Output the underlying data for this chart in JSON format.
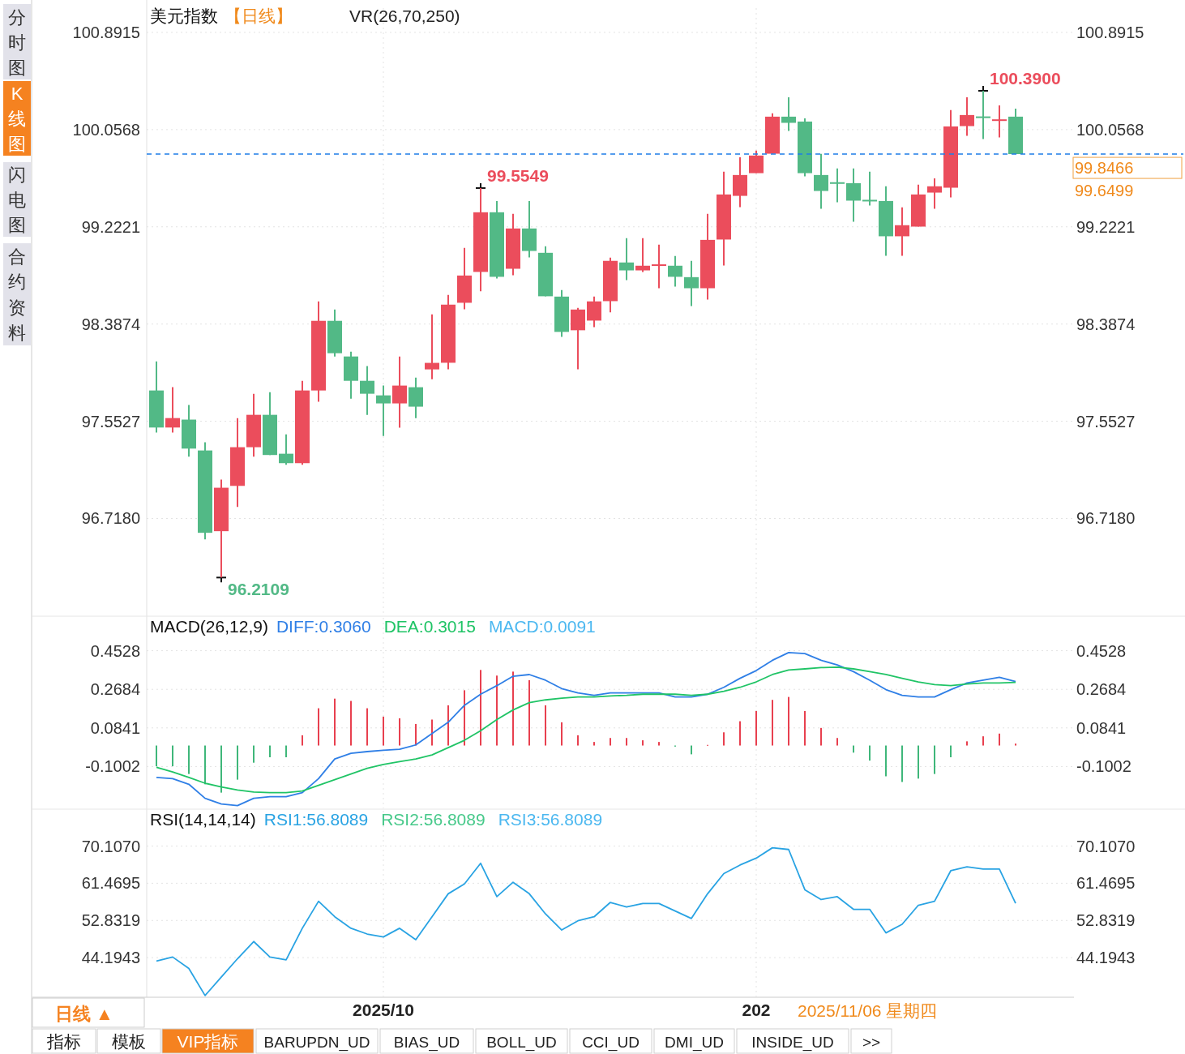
{
  "chart_data": [
    {
      "type": "candlestick",
      "title": "美元指数",
      "subtitle": "【日线】",
      "categories": [
        null,
        null,
        null,
        null,
        null,
        null,
        null,
        null,
        null,
        null,
        null,
        null,
        null,
        null,
        "2025/10",
        null,
        null,
        null,
        null,
        null,
        null,
        null,
        null,
        null,
        null,
        null,
        null,
        null,
        null,
        null,
        null,
        null,
        null,
        null,
        null,
        null,
        null,
        "202",
        null,
        null,
        null,
        null,
        null,
        null,
        null,
        null,
        null,
        null,
        null,
        null,
        null,
        null,
        null,
        null
      ],
      "ohlc": [
        [
          97.817,
          98.067,
          97.455,
          97.499
        ],
        [
          97.499,
          97.845,
          97.455,
          97.58
        ],
        [
          97.567,
          97.692,
          97.249,
          97.318
        ],
        [
          97.302,
          97.372,
          96.539,
          96.595
        ],
        [
          96.609,
          97.052,
          96.2109,
          96.982
        ],
        [
          96.998,
          97.58,
          96.818,
          97.33
        ],
        [
          97.33,
          97.789,
          97.249,
          97.608
        ],
        [
          97.608,
          97.803,
          97.263,
          97.263
        ],
        [
          97.274,
          97.441,
          97.179,
          97.193
        ],
        [
          97.193,
          97.9,
          97.179,
          97.817
        ],
        [
          97.817,
          98.582,
          97.72,
          98.415
        ],
        [
          98.415,
          98.513,
          98.109,
          98.137
        ],
        [
          98.109,
          98.151,
          97.747,
          97.9
        ],
        [
          97.9,
          98.026,
          97.608,
          97.789
        ],
        [
          97.775,
          97.859,
          97.427,
          97.706
        ],
        [
          97.706,
          98.109,
          97.497,
          97.859
        ],
        [
          97.845,
          97.928,
          97.58,
          97.678
        ],
        [
          97.998,
          98.471,
          97.914,
          98.054
        ],
        [
          98.055,
          98.637,
          97.999,
          98.554
        ],
        [
          98.57,
          99.041,
          98.514,
          98.804
        ],
        [
          98.835,
          99.5549,
          98.668,
          99.347
        ],
        [
          99.347,
          99.444,
          98.779,
          98.793
        ],
        [
          98.862,
          99.333,
          98.807,
          99.208
        ],
        [
          99.208,
          99.444,
          98.96,
          99.015
        ],
        [
          98.999,
          99.055,
          98.626,
          98.626
        ],
        [
          98.623,
          98.679,
          98.278,
          98.32
        ],
        [
          98.334,
          98.526,
          97.999,
          98.512
        ],
        [
          98.417,
          98.623,
          98.361,
          98.582
        ],
        [
          98.584,
          98.957,
          98.487,
          98.93
        ],
        [
          98.916,
          99.124,
          98.765,
          98.848
        ],
        [
          98.848,
          99.124,
          98.834,
          98.888
        ],
        [
          98.897,
          99.069,
          98.695,
          98.9
        ],
        [
          98.888,
          98.971,
          98.709,
          98.793
        ],
        [
          98.79,
          98.93,
          98.542,
          98.695
        ],
        [
          98.695,
          99.333,
          98.598,
          99.11
        ],
        [
          99.113,
          99.695,
          98.89,
          99.5
        ],
        [
          99.488,
          99.82,
          99.391,
          99.667
        ],
        [
          99.683,
          99.876,
          99.683,
          99.834
        ],
        [
          99.85,
          100.196,
          99.85,
          100.168
        ],
        [
          100.168,
          100.335,
          100.045,
          100.115
        ],
        [
          100.126,
          100.154,
          99.655,
          99.683
        ],
        [
          99.667,
          99.848,
          99.377,
          99.53
        ],
        [
          99.605,
          99.723,
          99.433,
          99.6
        ],
        [
          99.597,
          99.723,
          99.266,
          99.447
        ],
        [
          99.454,
          99.695,
          99.405,
          99.45
        ],
        [
          99.444,
          99.57,
          98.974,
          99.141
        ],
        [
          99.141,
          99.389,
          98.974,
          99.236
        ],
        [
          99.224,
          99.584,
          99.224,
          99.5
        ],
        [
          99.516,
          99.639,
          99.377,
          99.57
        ],
        [
          99.558,
          100.224,
          99.475,
          100.084
        ],
        [
          100.087,
          100.335,
          100.003,
          100.182
        ],
        [
          100.17,
          100.39,
          99.975,
          100.165
        ],
        [
          100.14,
          100.265,
          99.989,
          100.145
        ],
        [
          100.168,
          100.237,
          99.8466,
          99.8466
        ]
      ],
      "colors": [
        "#52b986",
        "#eb4d5c",
        "#52b986",
        "#52b986",
        "#eb4d5c",
        "#eb4d5c",
        "#eb4d5c",
        "#52b986",
        "#52b986",
        "#eb4d5c",
        "#eb4d5c",
        "#52b986",
        "#52b986",
        "#52b986",
        "#52b986",
        "#eb4d5c",
        "#52b986",
        "#eb4d5c",
        "#eb4d5c",
        "#eb4d5c",
        "#eb4d5c",
        "#52b986",
        "#eb4d5c",
        "#52b986",
        "#52b986",
        "#52b986",
        "#eb4d5c",
        "#eb4d5c",
        "#eb4d5c",
        "#52b986",
        "#eb4d5c",
        "#eb4d5c",
        "#52b986",
        "#52b986",
        "#eb4d5c",
        "#eb4d5c",
        "#eb4d5c",
        "#eb4d5c",
        "#eb4d5c",
        "#52b986",
        "#52b986",
        "#52b986",
        "#52b986",
        "#52b986",
        "#52b986",
        "#52b986",
        "#eb4d5c",
        "#eb4d5c",
        "#eb4d5c",
        "#eb4d5c",
        "#eb4d5c",
        "#52b986",
        "#eb4d5c",
        "#52b986"
      ],
      "ylim": [
        95.9,
        101.1
      ],
      "yticks": [
        {
          "value": 100.8915,
          "label": "100.8915"
        },
        {
          "value": 100.0568,
          "label": "100.0568"
        },
        {
          "value": 99.2221,
          "label": "99.2221"
        },
        {
          "value": 98.3874,
          "label": "98.3874"
        },
        {
          "value": 97.5527,
          "label": "97.5527"
        },
        {
          "value": 96.718,
          "label": "96.7180"
        }
      ],
      "y2lim": [
        95.9,
        101.1
      ],
      "y2ticks": [
        {
          "value": 100.8915,
          "label": "100.8915"
        },
        {
          "value": 100.0568,
          "label": "100.0568"
        },
        {
          "value": 99.2221,
          "label": "99.2221"
        },
        {
          "value": 98.3874,
          "label": "98.3874"
        },
        {
          "value": 97.5527,
          "label": "97.5527"
        },
        {
          "value": 96.718,
          "label": "96.7180"
        }
      ],
      "ref_lines": [
        {
          "axis": "y",
          "value": 99.8466,
          "label": "99.8466",
          "color": "#1e7ee8",
          "line_style": "dashed"
        }
      ],
      "annotations": [
        "VR(26,70,250)",
        "99.6499",
        "99.5549",
        "96.2109",
        "100.3900"
      ],
      "grid": true,
      "tick_labels": "y"
    },
    {
      "type": "line",
      "title": "MACD(26,12,9)",
      "categories": [
        null,
        null,
        null,
        null,
        null,
        null,
        null,
        null,
        null,
        null,
        null,
        null,
        null,
        null,
        "2025/10",
        null,
        null,
        null,
        null,
        null,
        null,
        null,
        null,
        null,
        null,
        null,
        null,
        null,
        null,
        null,
        null,
        null,
        null,
        null,
        null,
        null,
        null,
        "202",
        null,
        null,
        null,
        null,
        null,
        null,
        null,
        null,
        null,
        null,
        null,
        null,
        null,
        null,
        null,
        null
      ],
      "series": [
        {
          "name": "DIFF:0.3060",
          "color": "#2f7fe6",
          "values": [
            -0.152,
            -0.158,
            -0.185,
            -0.252,
            -0.279,
            -0.287,
            -0.252,
            -0.244,
            -0.244,
            -0.225,
            -0.158,
            -0.064,
            -0.037,
            -0.029,
            -0.023,
            -0.018,
            0.003,
            0.057,
            0.111,
            0.192,
            0.245,
            0.286,
            0.331,
            0.339,
            0.312,
            0.272,
            0.251,
            0.24,
            0.251,
            0.251,
            0.251,
            0.251,
            0.232,
            0.232,
            0.245,
            0.278,
            0.321,
            0.358,
            0.407,
            0.444,
            0.439,
            0.407,
            0.385,
            0.353,
            0.312,
            0.267,
            0.24,
            0.232,
            0.232,
            0.267,
            0.299,
            0.312,
            0.326,
            0.306
          ]
        },
        {
          "name": "DEA:0.3015",
          "color": "#20c466",
          "values": [
            -0.104,
            -0.126,
            -0.152,
            -0.18,
            -0.198,
            -0.212,
            -0.222,
            -0.225,
            -0.225,
            -0.217,
            -0.19,
            -0.163,
            -0.136,
            -0.109,
            -0.09,
            -0.077,
            -0.064,
            -0.045,
            -0.01,
            0.025,
            0.071,
            0.124,
            0.17,
            0.205,
            0.218,
            0.226,
            0.232,
            0.232,
            0.237,
            0.24,
            0.245,
            0.245,
            0.245,
            0.24,
            0.245,
            0.259,
            0.278,
            0.304,
            0.339,
            0.361,
            0.366,
            0.372,
            0.374,
            0.366,
            0.353,
            0.339,
            0.321,
            0.304,
            0.291,
            0.286,
            0.294,
            0.299,
            0.299,
            0.3015
          ]
        },
        {
          "name": "MACD:0.0091",
          "type": "bar",
          "color": "#4cb8f0",
          "values": [
            -0.099,
            -0.099,
            -0.136,
            -0.185,
            -0.225,
            -0.163,
            -0.082,
            -0.056,
            -0.056,
            0.049,
            0.178,
            0.224,
            0.213,
            0.178,
            0.138,
            0.13,
            0.103,
            0.124,
            0.192,
            0.264,
            0.361,
            0.334,
            0.353,
            0.312,
            0.192,
            0.111,
            0.049,
            0.017,
            0.036,
            0.036,
            0.025,
            0.017,
            -0.005,
            -0.042,
            0.003,
            0.063,
            0.116,
            0.165,
            0.218,
            0.232,
            0.165,
            0.084,
            0.036,
            -0.034,
            -0.072,
            -0.147,
            -0.174,
            -0.158,
            -0.136,
            -0.056,
            0.02,
            0.044,
            0.057,
            0.0091
          ],
          "colors": [
            "#3fb77a",
            "#3fb77a",
            "#3fb77a",
            "#3fb77a",
            "#3fb77a",
            "#3fb77a",
            "#3fb77a",
            "#3fb77a",
            "#3fb77a",
            "#e8404f",
            "#e8404f",
            "#e8404f",
            "#e8404f",
            "#e8404f",
            "#e8404f",
            "#e8404f",
            "#e8404f",
            "#e8404f",
            "#e8404f",
            "#e8404f",
            "#e8404f",
            "#e8404f",
            "#e8404f",
            "#e8404f",
            "#e8404f",
            "#e8404f",
            "#e8404f",
            "#e8404f",
            "#e8404f",
            "#e8404f",
            "#e8404f",
            "#e8404f",
            "#3fb77a",
            "#3fb77a",
            "#e8404f",
            "#e8404f",
            "#e8404f",
            "#e8404f",
            "#e8404f",
            "#e8404f",
            "#e8404f",
            "#e8404f",
            "#e8404f",
            "#3fb77a",
            "#3fb77a",
            "#3fb77a",
            "#3fb77a",
            "#3fb77a",
            "#3fb77a",
            "#3fb77a",
            "#e8404f",
            "#e8404f",
            "#e8404f",
            "#e8404f"
          ]
        }
      ],
      "ylim": [
        -0.3,
        0.61
      ],
      "yticks": [
        0.4528,
        0.2684,
        0.0841,
        -0.1002
      ],
      "y2lim": [
        -0.3,
        0.61
      ],
      "y2ticks": [
        0.4528,
        0.2684,
        0.0841,
        -0.1002
      ],
      "grid": true,
      "legend": "top left",
      "tick_labels": "y"
    },
    {
      "type": "line",
      "title": "RSI(14,14,14)",
      "categories": [
        null,
        null,
        null,
        null,
        null,
        null,
        null,
        null,
        null,
        null,
        null,
        null,
        null,
        null,
        "2025/10",
        null,
        null,
        null,
        null,
        null,
        null,
        null,
        null,
        null,
        null,
        null,
        null,
        null,
        null,
        null,
        null,
        null,
        null,
        null,
        null,
        null,
        null,
        "202",
        null,
        null,
        null,
        null,
        null,
        null,
        null,
        null,
        null,
        null,
        null,
        null,
        null,
        null,
        null,
        null
      ],
      "series": [
        {
          "name": "RSI1:56.8089",
          "color": "#29a3e3",
          "values": [
            43.41,
            44.34,
            41.67,
            35.4,
            39.67,
            43.94,
            47.94,
            44.34,
            43.67,
            51.02,
            57.29,
            53.69,
            51.02,
            49.68,
            49.01,
            51.02,
            48.35,
            53.69,
            59.03,
            61.3,
            66.1,
            58.36,
            61.7,
            59.03,
            54.35,
            50.61,
            52.75,
            53.69,
            57.02,
            55.96,
            56.76,
            56.76,
            55.02,
            53.29,
            59.03,
            63.7,
            65.7,
            67.3,
            69.71,
            69.31,
            59.96,
            57.69,
            58.36,
            55.42,
            55.42,
            49.95,
            51.95,
            56.36,
            57.29,
            64.37,
            65.3,
            64.77,
            64.77,
            56.8089
          ]
        }
      ],
      "annotations": [
        "RSI2:56.8089",
        "RSI3:56.8089"
      ],
      "ylim": [
        35,
        78.3
      ],
      "yticks": [
        {
          "value": 70.107,
          "label": "70.1070"
        },
        61.4695,
        52.8319,
        44.1943
      ],
      "y2lim": [
        35,
        78.3
      ],
      "y2ticks": [
        {
          "value": 70.107,
          "label": "70.1070"
        },
        61.4695,
        52.8319,
        44.1943
      ],
      "grid": true,
      "legend": "top left"
    },
    {
      "type": "other",
      "annotations": [
        "分时图",
        "K线图",
        "闪电图",
        "合约资料",
        "日线 ▲",
        "2025/11/06 星期四",
        "指标",
        "模板",
        "VIP指标",
        "BARUPDN_UD",
        "BIAS_UD",
        "BOLL_UD",
        "CCI_UD",
        "DMI_UD",
        "INSIDE_UD",
        ">>"
      ]
    }
  ]
}
